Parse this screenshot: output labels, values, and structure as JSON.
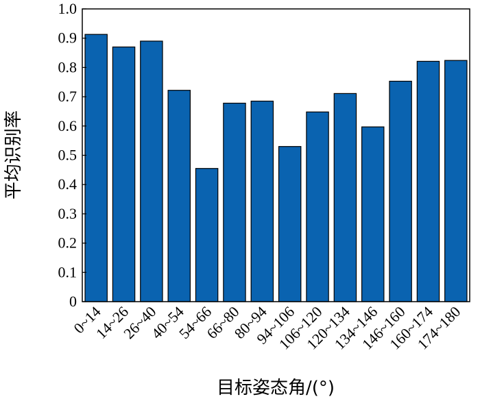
{
  "chart_data": {
    "type": "bar",
    "categories": [
      "0~14",
      "14~26",
      "26~40",
      "40~54",
      "54~66",
      "66~80",
      "80~94",
      "94~106",
      "106~120",
      "120~134",
      "134~146",
      "146~160",
      "160~174",
      "174~180"
    ],
    "values": [
      0.913,
      0.87,
      0.89,
      0.722,
      0.455,
      0.678,
      0.685,
      0.53,
      0.648,
      0.711,
      0.597,
      0.753,
      0.821,
      0.824
    ],
    "xlabel": "目标姿态角/(°)",
    "ylabel": "平均识别率",
    "ylim": [
      0,
      1.0
    ],
    "yticks": [
      "0",
      "0.1",
      "0.2",
      "0.3",
      "0.4",
      "0.5",
      "0.6",
      "0.7",
      "0.8",
      "0.9",
      "1.0"
    ],
    "grid": false,
    "bar_color": "#0a63b0"
  }
}
